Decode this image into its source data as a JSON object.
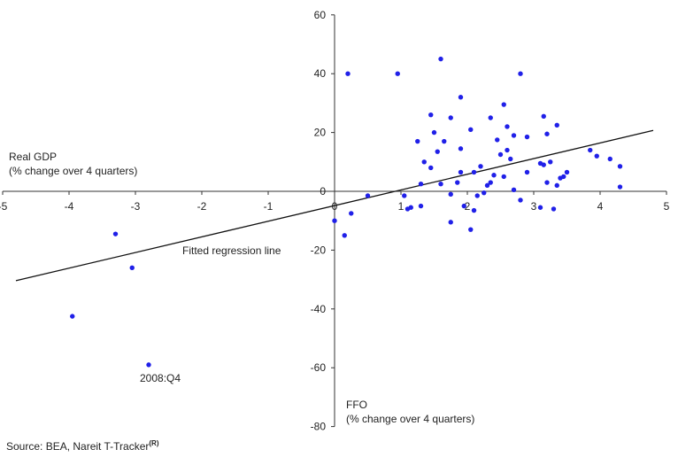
{
  "chart_data": {
    "type": "scatter",
    "title": "",
    "xlabel": "",
    "ylabel": "",
    "x_axis_label_lines": [
      "FFO",
      "(% change over 4 quarters)"
    ],
    "y_axis_label_lines": [
      "Real GDP",
      "(% change over 4 quarters)"
    ],
    "xlim": [
      -5,
      5
    ],
    "ylim": [
      -80,
      60
    ],
    "x_ticks": [
      "-5",
      "-4",
      "-3",
      "-2",
      "-1",
      "0",
      "1",
      "2",
      "3",
      "4",
      "5"
    ],
    "y_ticks": [
      "60",
      "40",
      "20",
      "0",
      "-20",
      "-40",
      "-60",
      "-80"
    ],
    "grid": false,
    "point_color": "#2020e8",
    "line_color": "#111111",
    "regression_line": {
      "label": "Fitted regression line",
      "x": [
        -4.8,
        4.8
      ],
      "y": [
        -30.4,
        20.7
      ]
    },
    "annotations": [
      {
        "text": "2008:Q4",
        "x": -2.8,
        "y": -59
      }
    ],
    "points": [
      {
        "x": 0.2,
        "y": 40
      },
      {
        "x": 0.95,
        "y": 40
      },
      {
        "x": 1.6,
        "y": 45
      },
      {
        "x": 2.8,
        "y": 40
      },
      {
        "x": 1.9,
        "y": 32
      },
      {
        "x": 2.55,
        "y": 29.5
      },
      {
        "x": 1.45,
        "y": 26
      },
      {
        "x": 1.75,
        "y": 25
      },
      {
        "x": 2.35,
        "y": 25
      },
      {
        "x": 3.15,
        "y": 25.5
      },
      {
        "x": 3.35,
        "y": 22.5
      },
      {
        "x": 1.5,
        "y": 20
      },
      {
        "x": 2.05,
        "y": 21
      },
      {
        "x": 2.6,
        "y": 22
      },
      {
        "x": 3.2,
        "y": 19.5
      },
      {
        "x": 2.7,
        "y": 19
      },
      {
        "x": 2.9,
        "y": 18.5
      },
      {
        "x": 1.25,
        "y": 17
      },
      {
        "x": 1.65,
        "y": 17
      },
      {
        "x": 2.45,
        "y": 17.5
      },
      {
        "x": 1.55,
        "y": 13.5
      },
      {
        "x": 1.9,
        "y": 14.5
      },
      {
        "x": 2.6,
        "y": 14
      },
      {
        "x": 2.5,
        "y": 12.5
      },
      {
        "x": 2.65,
        "y": 11
      },
      {
        "x": 3.85,
        "y": 14
      },
      {
        "x": 3.95,
        "y": 12
      },
      {
        "x": 4.15,
        "y": 11
      },
      {
        "x": 4.3,
        "y": 8.5
      },
      {
        "x": 1.35,
        "y": 10
      },
      {
        "x": 1.45,
        "y": 8
      },
      {
        "x": 2.2,
        "y": 8.5
      },
      {
        "x": 3.1,
        "y": 9.5
      },
      {
        "x": 3.15,
        "y": 9
      },
      {
        "x": 3.25,
        "y": 10
      },
      {
        "x": 2.9,
        "y": 6.5
      },
      {
        "x": 1.9,
        "y": 6.5
      },
      {
        "x": 2.1,
        "y": 6.5
      },
      {
        "x": 2.4,
        "y": 5.5
      },
      {
        "x": 2.55,
        "y": 5
      },
      {
        "x": 3.5,
        "y": 6.5
      },
      {
        "x": 3.4,
        "y": 4.5
      },
      {
        "x": 3.45,
        "y": 5
      },
      {
        "x": 1.3,
        "y": 2.5
      },
      {
        "x": 1.6,
        "y": 2.5
      },
      {
        "x": 1.85,
        "y": 3
      },
      {
        "x": 2.3,
        "y": 2
      },
      {
        "x": 2.35,
        "y": 3
      },
      {
        "x": 3.2,
        "y": 3
      },
      {
        "x": 3.35,
        "y": 2
      },
      {
        "x": 4.3,
        "y": 1.5
      },
      {
        "x": 2.7,
        "y": 0.5
      },
      {
        "x": 0.5,
        "y": -1.5
      },
      {
        "x": 1.05,
        "y": -1.5
      },
      {
        "x": 1.75,
        "y": -1
      },
      {
        "x": 2.15,
        "y": -1.5
      },
      {
        "x": 2.25,
        "y": -0.5
      },
      {
        "x": 1.1,
        "y": -6
      },
      {
        "x": 1.15,
        "y": -5.5
      },
      {
        "x": 1.3,
        "y": -5
      },
      {
        "x": 1.95,
        "y": -5
      },
      {
        "x": 2.1,
        "y": -6.5
      },
      {
        "x": 2.8,
        "y": -3
      },
      {
        "x": 3.1,
        "y": -5.5
      },
      {
        "x": 3.3,
        "y": -6
      },
      {
        "x": 0.25,
        "y": -7.5
      },
      {
        "x": 0.0,
        "y": -10
      },
      {
        "x": 1.75,
        "y": -10.5
      },
      {
        "x": 0.15,
        "y": -15
      },
      {
        "x": 2.05,
        "y": -13
      },
      {
        "x": -3.3,
        "y": -14.5
      },
      {
        "x": -3.05,
        "y": -26
      },
      {
        "x": -3.95,
        "y": -42.5
      },
      {
        "x": -2.8,
        "y": -59
      }
    ]
  },
  "source": {
    "text": "Source: BEA, Nareit T-Tracker",
    "mark": "(R)"
  }
}
